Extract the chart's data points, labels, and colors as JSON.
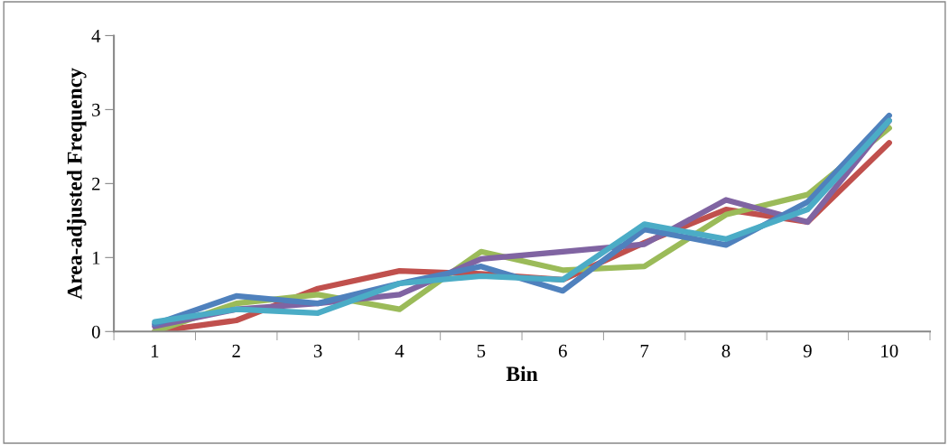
{
  "chart_data": {
    "type": "line",
    "xlabel": "Bin",
    "ylabel": "Area-adjusted Frequency",
    "categories": [
      "1",
      "2",
      "3",
      "4",
      "5",
      "6",
      "7",
      "8",
      "9",
      "10"
    ],
    "ylim": [
      0,
      4
    ],
    "yticks": [
      0,
      1,
      2,
      3,
      4
    ],
    "grid": false,
    "marker": "none",
    "line_style": "solid",
    "series": [
      {
        "color": "#c0504d",
        "values": [
          0.0,
          0.15,
          0.58,
          0.82,
          0.78,
          0.7,
          1.2,
          1.65,
          1.48,
          2.55
        ]
      },
      {
        "color": "#9bbb59",
        "values": [
          0.0,
          0.38,
          0.5,
          0.3,
          1.08,
          0.83,
          0.88,
          1.58,
          1.85,
          2.75
        ]
      },
      {
        "color": "#8064a2",
        "values": [
          0.07,
          0.3,
          0.38,
          0.5,
          0.98,
          1.08,
          1.18,
          1.78,
          1.48,
          2.85
        ]
      },
      {
        "color": "#4f81bd",
        "values": [
          0.1,
          0.48,
          0.38,
          0.65,
          0.88,
          0.55,
          1.38,
          1.17,
          1.75,
          2.92
        ]
      },
      {
        "color": "#4bacc6",
        "values": [
          0.13,
          0.3,
          0.25,
          0.65,
          0.75,
          0.7,
          1.45,
          1.25,
          1.65,
          2.85
        ]
      }
    ]
  }
}
